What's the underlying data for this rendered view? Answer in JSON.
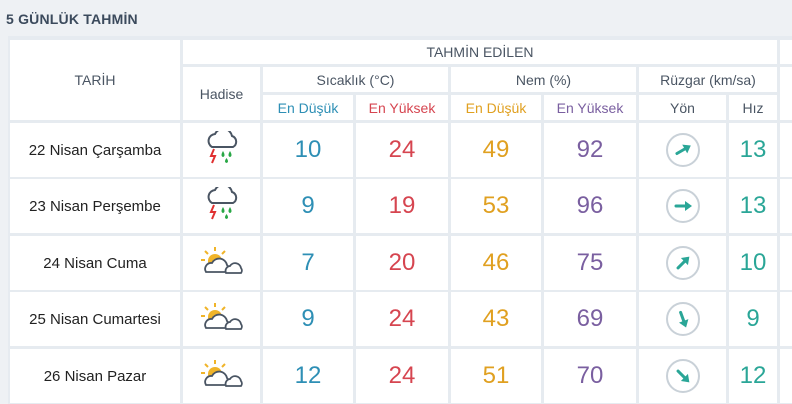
{
  "title": "5 GÜNLÜK TAHMİN",
  "header": {
    "date": "TARİH",
    "forecast": "TAHMİN EDİLEN",
    "event": "Hadise",
    "temp": "Sıcaklık (°C)",
    "humidity": "Nem (%)",
    "wind": "Rüzgar (km/sa)",
    "min": "En Düşük",
    "max": "En Yüksek",
    "direction": "Yön",
    "speed": "Hız"
  },
  "rows": [
    {
      "date": "22 Nisan Çarşamba",
      "icon": "thunderstorm-rain-icon",
      "temp_min": "10",
      "temp_max": "24",
      "hum_min": "49",
      "hum_max": "92",
      "wind_dir_deg": 60,
      "wind_speed": "13"
    },
    {
      "date": "23 Nisan Perşembe",
      "icon": "thunderstorm-rain-icon",
      "temp_min": "9",
      "temp_max": "19",
      "hum_min": "53",
      "hum_max": "96",
      "wind_dir_deg": 90,
      "wind_speed": "13"
    },
    {
      "date": "24 Nisan Cuma",
      "icon": "partly-cloudy-icon",
      "temp_min": "7",
      "temp_max": "20",
      "hum_min": "46",
      "hum_max": "75",
      "wind_dir_deg": 45,
      "wind_speed": "10"
    },
    {
      "date": "25 Nisan Cumartesi",
      "icon": "partly-cloudy-icon",
      "temp_min": "9",
      "temp_max": "24",
      "hum_min": "43",
      "hum_max": "69",
      "wind_dir_deg": 160,
      "wind_speed": "9"
    },
    {
      "date": "26 Nisan Pazar",
      "icon": "partly-cloudy-icon",
      "temp_min": "12",
      "temp_max": "24",
      "hum_min": "51",
      "hum_max": "70",
      "wind_dir_deg": 135,
      "wind_speed": "12"
    }
  ]
}
